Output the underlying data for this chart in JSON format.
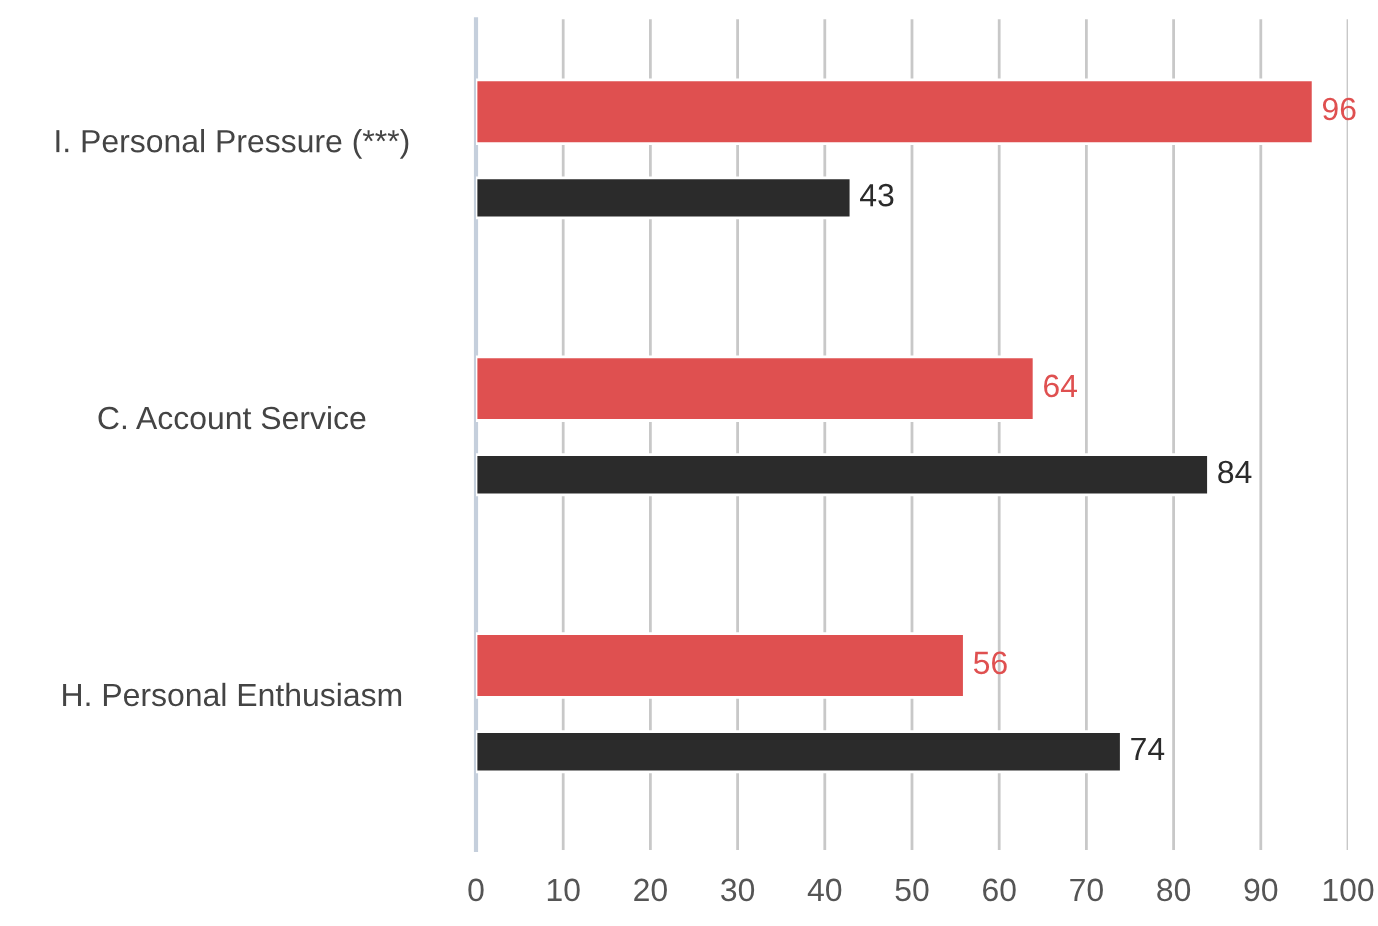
{
  "chart_data": {
    "type": "bar",
    "orientation": "horizontal",
    "categories": [
      "I. Personal Pressure (***)",
      "C. Account Service",
      "H. Personal Enthusiasm"
    ],
    "series": [
      {
        "color": "#df5050",
        "values": [
          96,
          64,
          56
        ]
      },
      {
        "color": "#2b2b2b",
        "values": [
          43,
          84,
          74
        ]
      }
    ],
    "xlim": [
      0,
      100
    ],
    "xticks": [
      0,
      10,
      20,
      30,
      40,
      50,
      60,
      70,
      80,
      90,
      100
    ],
    "grid": "x",
    "data_labels": true
  }
}
